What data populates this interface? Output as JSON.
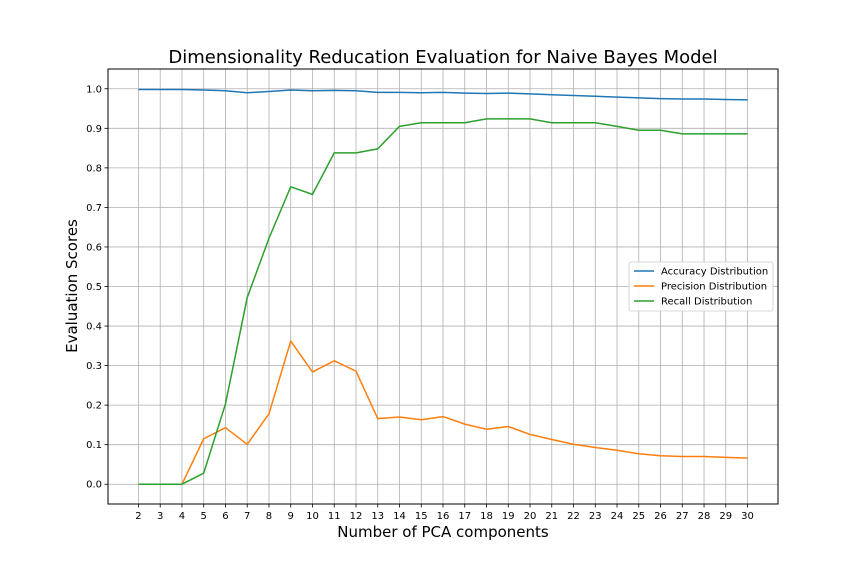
{
  "chart_data": {
    "type": "line",
    "title": "Dimensionality Reducation Evaluation for Naive Bayes Model",
    "xlabel": "Number of PCA components",
    "ylabel": "Evaluation Scores",
    "x": [
      2,
      3,
      4,
      5,
      6,
      7,
      8,
      9,
      10,
      11,
      12,
      13,
      14,
      15,
      16,
      17,
      18,
      19,
      20,
      21,
      22,
      23,
      24,
      25,
      26,
      27,
      28,
      29,
      30
    ],
    "xlim": [
      0.6,
      31.4
    ],
    "ylim": [
      -0.05,
      1.05
    ],
    "xticks": [
      "2",
      "3",
      "4",
      "5",
      "6",
      "7",
      "8",
      "9",
      "10",
      "11",
      "12",
      "13",
      "14",
      "15",
      "16",
      "17",
      "18",
      "19",
      "20",
      "21",
      "22",
      "23",
      "24",
      "25",
      "26",
      "27",
      "28",
      "29",
      "30"
    ],
    "yticks": [
      "0.0",
      "0.1",
      "0.2",
      "0.3",
      "0.4",
      "0.5",
      "0.6",
      "0.7",
      "0.8",
      "0.9",
      "1.0"
    ],
    "grid": true,
    "legend_position": "center-right",
    "series": [
      {
        "name": "Accuracy Distribution",
        "color": "#1f77b4",
        "values": [
          0.998,
          0.998,
          0.998,
          0.997,
          0.995,
          0.99,
          0.993,
          0.997,
          0.995,
          0.996,
          0.995,
          0.991,
          0.991,
          0.99,
          0.991,
          0.989,
          0.988,
          0.989,
          0.987,
          0.985,
          0.983,
          0.981,
          0.979,
          0.977,
          0.975,
          0.974,
          0.974,
          0.973,
          0.972
        ]
      },
      {
        "name": "Precision Distribution",
        "color": "#ff7f0e",
        "values": [
          0.0,
          0.0,
          0.0,
          0.115,
          0.143,
          0.101,
          0.178,
          0.362,
          0.284,
          0.312,
          0.286,
          0.166,
          0.17,
          0.163,
          0.171,
          0.152,
          0.139,
          0.146,
          0.126,
          0.113,
          0.101,
          0.093,
          0.086,
          0.077,
          0.072,
          0.07,
          0.07,
          0.068,
          0.066
        ]
      },
      {
        "name": "Recall Distribution",
        "color": "#2ca02c",
        "values": [
          0.0,
          0.0,
          0.0,
          0.028,
          0.203,
          0.472,
          0.622,
          0.752,
          0.733,
          0.838,
          0.838,
          0.848,
          0.905,
          0.914,
          0.914,
          0.914,
          0.924,
          0.924,
          0.924,
          0.914,
          0.914,
          0.914,
          0.905,
          0.895,
          0.895,
          0.886,
          0.886,
          0.886,
          0.886
        ]
      }
    ]
  }
}
